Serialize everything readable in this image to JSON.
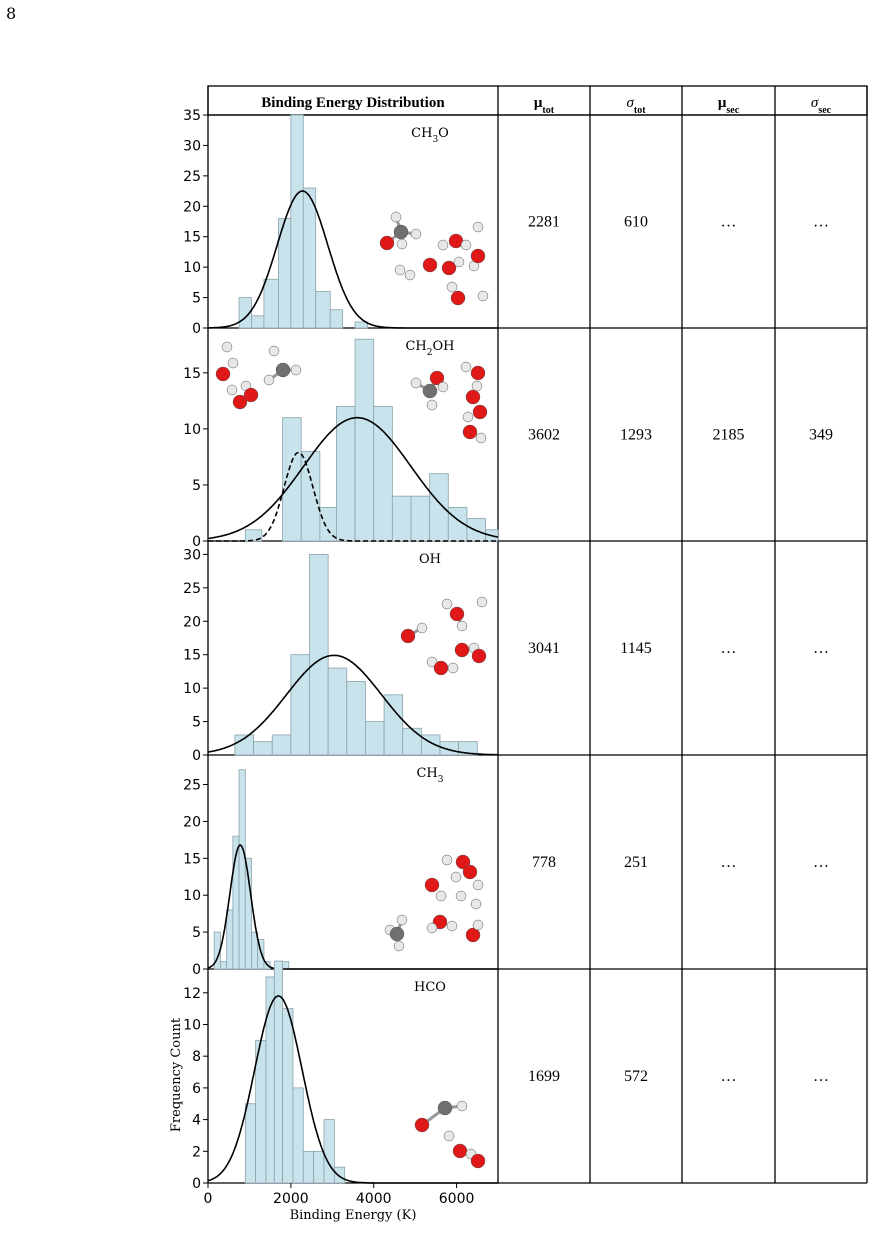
{
  "page_number": "8",
  "table": {
    "headers": [
      "Binding Energy Distribution",
      "μ",
      "σ",
      "μ",
      "σ"
    ],
    "header_subs": [
      "",
      "tot",
      "tot",
      "sec",
      "sec"
    ],
    "rows": [
      {
        "species": "CH3O",
        "species_base": "CH",
        "species_sub": "3",
        "species_tail": "O",
        "mu_tot": "2281",
        "sigma_tot": "610",
        "mu_sec": "…",
        "sigma_sec": "…"
      },
      {
        "species": "CH2OH",
        "species_base": "CH",
        "species_sub": "2",
        "species_tail": "OH",
        "mu_tot": "3602",
        "sigma_tot": "1293",
        "mu_sec": "2185",
        "sigma_sec": "349"
      },
      {
        "species": "OH",
        "species_base": "OH",
        "species_sub": "",
        "species_tail": "",
        "mu_tot": "3041",
        "sigma_tot": "1145",
        "mu_sec": "…",
        "sigma_sec": "…"
      },
      {
        "species": "CH3",
        "species_base": "CH",
        "species_sub": "3",
        "species_tail": "",
        "mu_tot": "778",
        "sigma_tot": "251",
        "mu_sec": "…",
        "sigma_sec": "…"
      },
      {
        "species": "HCO",
        "species_base": "HCO",
        "species_sub": "",
        "species_tail": "",
        "mu_tot": "1699",
        "sigma_tot": "572",
        "mu_sec": "…",
        "sigma_sec": "…"
      }
    ]
  },
  "colors": {
    "bar_fill": "#c8e3ec",
    "bar_edge": "#8aa3ab",
    "curve": "#000000",
    "oxygen": "#e01818",
    "hydrogen": "#e8e8e8",
    "carbon": "#707070"
  },
  "chart_data": [
    {
      "type": "bar",
      "species": "CH3O",
      "xlim": [
        0,
        7000
      ],
      "ylim": [
        0,
        35
      ],
      "yticks": [
        0,
        5,
        10,
        15,
        20,
        25,
        30,
        35
      ],
      "bin_edges": [
        750,
        1050,
        1350,
        1700,
        2000,
        2300,
        2600,
        2950,
        3250,
        3550,
        3850,
        4150
      ],
      "counts": [
        5,
        2,
        8,
        18,
        35,
        23,
        6,
        3,
        0,
        1,
        0
      ],
      "fits": [
        {
          "mu": 2281,
          "sigma": 610,
          "amp": 22.5,
          "dash": false
        }
      ]
    },
    {
      "type": "bar",
      "species": "CH2OH",
      "xlim": [
        0,
        7000
      ],
      "ylim": [
        0,
        19
      ],
      "yticks": [
        0,
        5,
        10,
        15
      ],
      "bin_edges": [
        900,
        1300,
        1800,
        2250,
        2700,
        3100,
        3550,
        4000,
        4450,
        4900,
        5350,
        5800,
        6250,
        6700,
        7000
      ],
      "counts": [
        1,
        0,
        11,
        8,
        3,
        12,
        18,
        12,
        4,
        4,
        6,
        3,
        2,
        1
      ],
      "fits": [
        {
          "mu": 3602,
          "sigma": 1293,
          "amp": 11.0,
          "dash": false
        },
        {
          "mu": 2185,
          "sigma": 349,
          "amp": 7.9,
          "dash": true
        }
      ]
    },
    {
      "type": "bar",
      "species": "OH",
      "xlim": [
        0,
        7000
      ],
      "ylim": [
        0,
        32
      ],
      "yticks": [
        0,
        5,
        10,
        15,
        20,
        25,
        30
      ],
      "bin_edges": [
        650,
        1100,
        1550,
        2000,
        2450,
        2900,
        3350,
        3800,
        4250,
        4700,
        5150,
        5600,
        6050,
        6500
      ],
      "counts": [
        3,
        2,
        3,
        15,
        30,
        13,
        11,
        5,
        9,
        4,
        3,
        2,
        2
      ],
      "fits": [
        {
          "mu": 3041,
          "sigma": 1145,
          "amp": 14.9,
          "dash": false
        }
      ]
    },
    {
      "type": "bar",
      "species": "CH3",
      "xlim": [
        0,
        7000
      ],
      "ylim": [
        0,
        29
      ],
      "yticks": [
        0,
        5,
        10,
        15,
        20,
        25
      ],
      "bin_edges": [
        150,
        300,
        450,
        600,
        750,
        900,
        1050,
        1200,
        1350,
        1500,
        1650,
        1800,
        1950
      ],
      "counts": [
        5,
        1,
        8,
        18,
        27,
        15,
        5,
        4,
        1,
        0,
        0,
        1
      ],
      "fits": [
        {
          "mu": 778,
          "sigma": 251,
          "amp": 16.8,
          "dash": false
        }
      ]
    },
    {
      "type": "bar",
      "species": "HCO",
      "xlim": [
        0,
        7000
      ],
      "ylim": [
        0,
        13.5
      ],
      "yticks": [
        0,
        2,
        4,
        6,
        8,
        10,
        12
      ],
      "xticks": [
        0,
        2000,
        4000,
        6000
      ],
      "xlabel": "Binding Energy (K)",
      "ylabel": "Frequency Count",
      "bin_edges": [
        900,
        1150,
        1400,
        1600,
        1800,
        2050,
        2300,
        2550,
        2800,
        3050,
        3300
      ],
      "counts": [
        5,
        9,
        13,
        14,
        11,
        6,
        2,
        2,
        4,
        1
      ],
      "fits": [
        {
          "mu": 1699,
          "sigma": 572,
          "amp": 11.8,
          "dash": false
        }
      ]
    }
  ]
}
